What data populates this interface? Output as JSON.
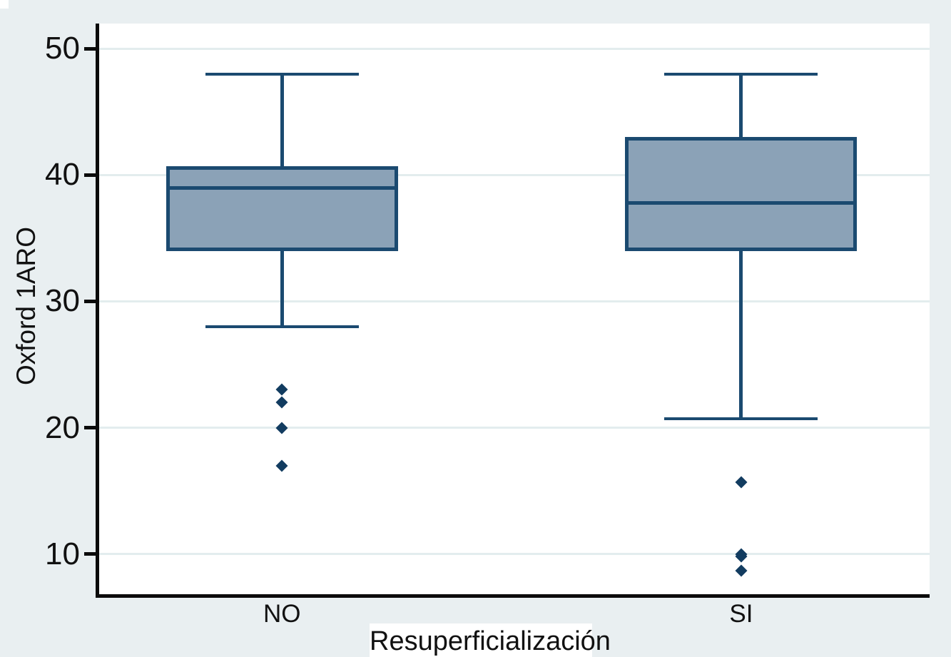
{
  "figure": {
    "background_color": "#e9eff1",
    "plot_background_color": "#ffffff",
    "grid_color": "#e3edee",
    "axis_color": "#0b0b0b",
    "box_fill_color": "#8ba2b7",
    "box_stroke_color": "#1b4a70"
  },
  "chart_data": {
    "type": "boxplot",
    "title": "",
    "xlabel": "Resuperficialización",
    "ylabel": "Oxford 1ARO",
    "categories": [
      "NO",
      "SI"
    ],
    "yticks": [
      10,
      20,
      30,
      40,
      50
    ],
    "ylim": [
      6.7,
      52
    ],
    "grid": true,
    "legend": "none",
    "series": [
      {
        "label": "NO",
        "whisker_low": 28,
        "q1": 34,
        "median": 39,
        "q3": 40.7,
        "whisker_high": 48,
        "outliers": [
          23,
          22,
          20,
          17
        ]
      },
      {
        "label": "SI",
        "whisker_low": 20.7,
        "q1": 34,
        "median": 37.8,
        "q3": 43,
        "whisker_high": 48,
        "outliers": [
          15.7,
          10,
          9.8,
          8.7
        ]
      }
    ]
  }
}
